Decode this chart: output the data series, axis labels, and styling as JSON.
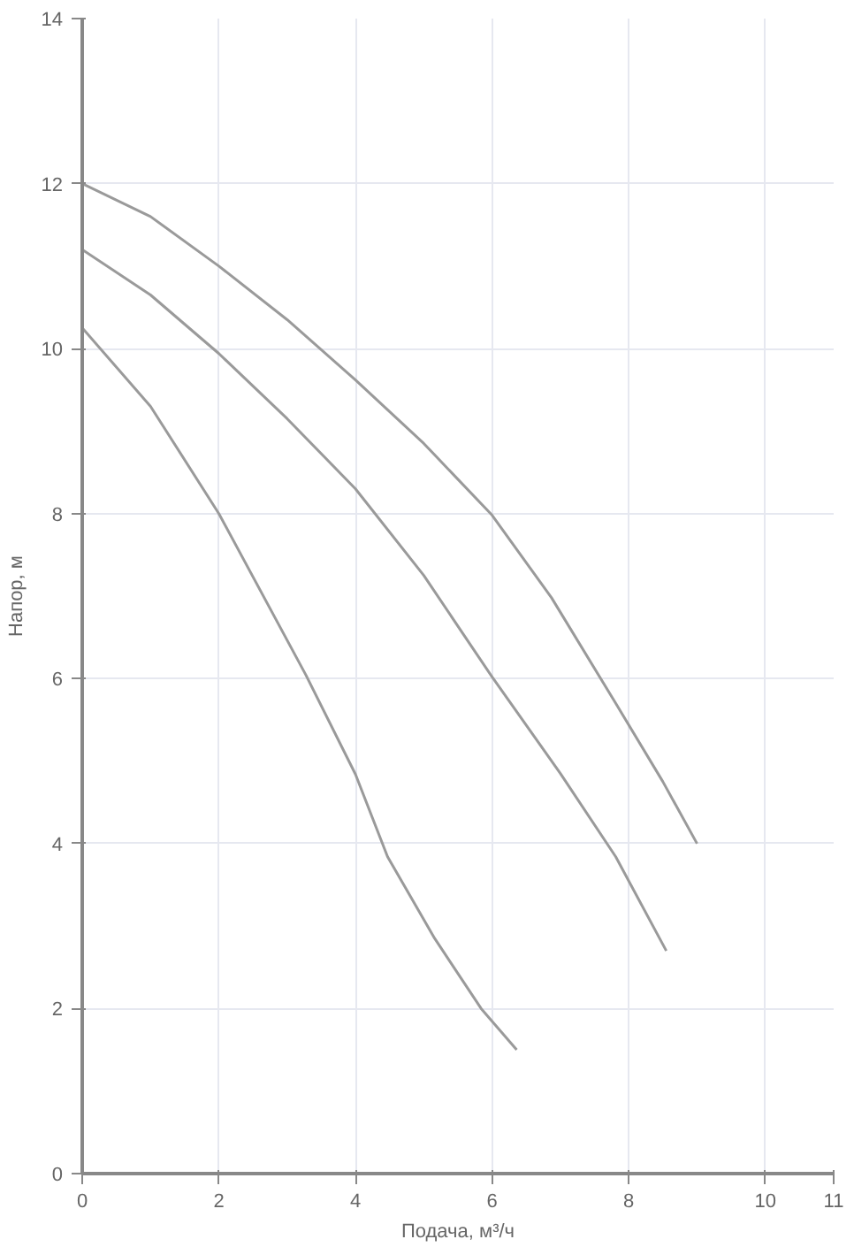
{
  "chart_data": {
    "type": "line",
    "xlabel": "Подача, м³/ч",
    "ylabel": "Напор, м",
    "xlim": [
      0,
      11
    ],
    "ylim": [
      0,
      14
    ],
    "xticks": [
      0,
      2,
      4,
      6,
      8,
      10,
      11
    ],
    "yticks": [
      0,
      2,
      4,
      6,
      8,
      10,
      12,
      14
    ],
    "grid": true,
    "marker": "none",
    "line_style": "solid",
    "series": [
      {
        "color": "#9a9a9a",
        "x": [
          0,
          1,
          2,
          3,
          4,
          5,
          6,
          6.87,
          7.81,
          8.5,
          9
        ],
        "values": [
          12.0,
          11.6,
          11.0,
          10.35,
          9.62,
          8.85,
          7.98,
          6.98,
          5.7,
          4.75,
          4.0
        ]
      },
      {
        "color": "#9a9a9a",
        "x": [
          0,
          1,
          2,
          3,
          4,
          5,
          6,
          7,
          7.81,
          8.55
        ],
        "values": [
          11.2,
          10.65,
          9.94,
          9.15,
          8.3,
          7.25,
          6.02,
          4.85,
          3.84,
          2.7
        ]
      },
      {
        "color": "#9a9a9a",
        "x": [
          0,
          1,
          2,
          3.27,
          4,
          4.47,
          5.16,
          5.84,
          6.36
        ],
        "values": [
          10.25,
          9.3,
          8.0,
          6.05,
          4.84,
          3.84,
          2.85,
          2.0,
          1.5
        ]
      }
    ]
  }
}
